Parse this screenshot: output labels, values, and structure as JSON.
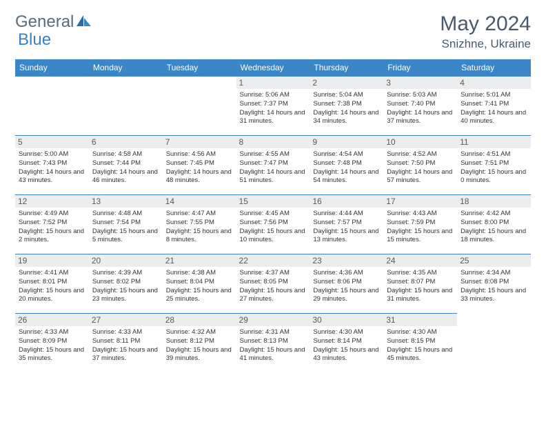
{
  "logo": {
    "part1": "General",
    "part2": "Blue"
  },
  "title": "May 2024",
  "location": "Snizhne, Ukraine",
  "colors": {
    "header_bg": "#3b86c7",
    "header_fg": "#ffffff",
    "border": "#3b7fc4",
    "daynum_bg": "#ecedee",
    "logo_gray": "#5a6b7a",
    "logo_blue": "#3b7fc4",
    "text": "#323232"
  },
  "weekdays": [
    "Sunday",
    "Monday",
    "Tuesday",
    "Wednesday",
    "Thursday",
    "Friday",
    "Saturday"
  ],
  "weeks": [
    [
      null,
      null,
      null,
      {
        "n": "1",
        "sr": "5:06 AM",
        "ss": "7:37 PM",
        "dl": "14 hours and 31 minutes."
      },
      {
        "n": "2",
        "sr": "5:04 AM",
        "ss": "7:38 PM",
        "dl": "14 hours and 34 minutes."
      },
      {
        "n": "3",
        "sr": "5:03 AM",
        "ss": "7:40 PM",
        "dl": "14 hours and 37 minutes."
      },
      {
        "n": "4",
        "sr": "5:01 AM",
        "ss": "7:41 PM",
        "dl": "14 hours and 40 minutes."
      }
    ],
    [
      {
        "n": "5",
        "sr": "5:00 AM",
        "ss": "7:43 PM",
        "dl": "14 hours and 43 minutes."
      },
      {
        "n": "6",
        "sr": "4:58 AM",
        "ss": "7:44 PM",
        "dl": "14 hours and 46 minutes."
      },
      {
        "n": "7",
        "sr": "4:56 AM",
        "ss": "7:45 PM",
        "dl": "14 hours and 48 minutes."
      },
      {
        "n": "8",
        "sr": "4:55 AM",
        "ss": "7:47 PM",
        "dl": "14 hours and 51 minutes."
      },
      {
        "n": "9",
        "sr": "4:54 AM",
        "ss": "7:48 PM",
        "dl": "14 hours and 54 minutes."
      },
      {
        "n": "10",
        "sr": "4:52 AM",
        "ss": "7:50 PM",
        "dl": "14 hours and 57 minutes."
      },
      {
        "n": "11",
        "sr": "4:51 AM",
        "ss": "7:51 PM",
        "dl": "15 hours and 0 minutes."
      }
    ],
    [
      {
        "n": "12",
        "sr": "4:49 AM",
        "ss": "7:52 PM",
        "dl": "15 hours and 2 minutes."
      },
      {
        "n": "13",
        "sr": "4:48 AM",
        "ss": "7:54 PM",
        "dl": "15 hours and 5 minutes."
      },
      {
        "n": "14",
        "sr": "4:47 AM",
        "ss": "7:55 PM",
        "dl": "15 hours and 8 minutes."
      },
      {
        "n": "15",
        "sr": "4:45 AM",
        "ss": "7:56 PM",
        "dl": "15 hours and 10 minutes."
      },
      {
        "n": "16",
        "sr": "4:44 AM",
        "ss": "7:57 PM",
        "dl": "15 hours and 13 minutes."
      },
      {
        "n": "17",
        "sr": "4:43 AM",
        "ss": "7:59 PM",
        "dl": "15 hours and 15 minutes."
      },
      {
        "n": "18",
        "sr": "4:42 AM",
        "ss": "8:00 PM",
        "dl": "15 hours and 18 minutes."
      }
    ],
    [
      {
        "n": "19",
        "sr": "4:41 AM",
        "ss": "8:01 PM",
        "dl": "15 hours and 20 minutes."
      },
      {
        "n": "20",
        "sr": "4:39 AM",
        "ss": "8:02 PM",
        "dl": "15 hours and 23 minutes."
      },
      {
        "n": "21",
        "sr": "4:38 AM",
        "ss": "8:04 PM",
        "dl": "15 hours and 25 minutes."
      },
      {
        "n": "22",
        "sr": "4:37 AM",
        "ss": "8:05 PM",
        "dl": "15 hours and 27 minutes."
      },
      {
        "n": "23",
        "sr": "4:36 AM",
        "ss": "8:06 PM",
        "dl": "15 hours and 29 minutes."
      },
      {
        "n": "24",
        "sr": "4:35 AM",
        "ss": "8:07 PM",
        "dl": "15 hours and 31 minutes."
      },
      {
        "n": "25",
        "sr": "4:34 AM",
        "ss": "8:08 PM",
        "dl": "15 hours and 33 minutes."
      }
    ],
    [
      {
        "n": "26",
        "sr": "4:33 AM",
        "ss": "8:09 PM",
        "dl": "15 hours and 35 minutes."
      },
      {
        "n": "27",
        "sr": "4:33 AM",
        "ss": "8:11 PM",
        "dl": "15 hours and 37 minutes."
      },
      {
        "n": "28",
        "sr": "4:32 AM",
        "ss": "8:12 PM",
        "dl": "15 hours and 39 minutes."
      },
      {
        "n": "29",
        "sr": "4:31 AM",
        "ss": "8:13 PM",
        "dl": "15 hours and 41 minutes."
      },
      {
        "n": "30",
        "sr": "4:30 AM",
        "ss": "8:14 PM",
        "dl": "15 hours and 43 minutes."
      },
      {
        "n": "31",
        "sr": "4:30 AM",
        "ss": "8:15 PM",
        "dl": "15 hours and 45 minutes."
      },
      null
    ]
  ],
  "labels": {
    "sunrise": "Sunrise:",
    "sunset": "Sunset:",
    "daylight": "Daylight:"
  }
}
